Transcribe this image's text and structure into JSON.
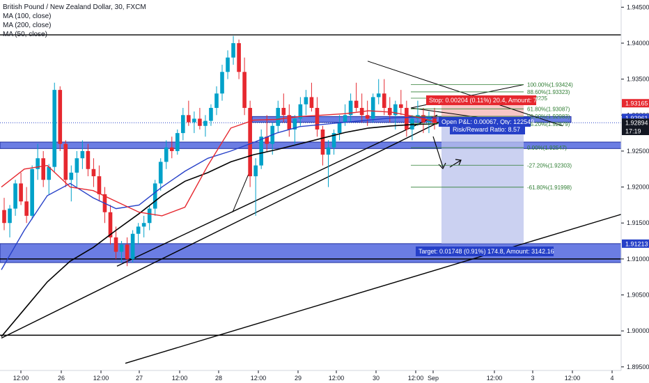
{
  "legend": {
    "title": "British Pound / New Zealand Dollar, 30, FXCM",
    "ma100": "MA (100, close)",
    "ma200": "MA (200, close)",
    "ma50": "MA (50, close)"
  },
  "colors": {
    "up": "#00a1c9",
    "down": "#e6282f",
    "ma50": "#e6282f",
    "ma100": "#2640c8",
    "ma200": "#000000",
    "zone": "#3a52d9",
    "target_box": "#b9c2ec",
    "stop_box": "#f5b8b8",
    "fib": "#2e7d32"
  },
  "chart_data": {
    "type": "candlestick",
    "symbol": "British Pound / New Zealand Dollar, 30, FXCM",
    "ylim": [
      1.8945,
      1.946
    ],
    "y_ticks": [
      "1.94500",
      "1.94000",
      "1.93500",
      "1.93000",
      "1.92500",
      "1.92000",
      "1.91500",
      "1.91000",
      "1.90500",
      "1.90000",
      "1.89500"
    ],
    "x_ticks": [
      "12:00",
      "26",
      "12:00",
      "27",
      "12:00",
      "28",
      "12:00",
      "29",
      "12:00",
      "30",
      "12:00",
      "Sep",
      "12:00",
      "3",
      "12:00",
      "4"
    ],
    "price_tags": [
      {
        "label": "1.93165",
        "color": "#e6282f"
      },
      {
        "label": "1.92961",
        "color": "#2640c8"
      },
      {
        "label": "1.92894",
        "color": "#131722"
      },
      {
        "label": "17:19",
        "color": "#131722"
      },
      {
        "label": "1.91213",
        "color": "#2640c8"
      }
    ],
    "fib_levels": [
      {
        "label": "100.00%(1.93424)",
        "value": 1.93424
      },
      {
        "label": "88.60%(1.93323)",
        "value": 1.93323
      },
      {
        "label": "1.93235",
        "value": 1.93235
      },
      {
        "label": "61.80%(1.93087)",
        "value": 1.93087
      },
      {
        "label": "50.00%(1.92983)",
        "value": 1.92983
      },
      {
        "label": "38.20%(1.92879)",
        "value": 1.92879
      },
      {
        "label": "0.00%(1.92547)",
        "value": 1.92547
      },
      {
        "label": "-27.20%(1.92303)",
        "value": 1.92303
      },
      {
        "label": "-61.80%(1.91998)",
        "value": 1.91998
      }
    ],
    "position": {
      "stop_label": "Stop: 0.00204 (0.11%) 20.4, Amount: 750",
      "pnl_label": "Open P&L: 0.00067, Qty: 122549",
      "rr_label": "Risk/Reward Ratio: 8.57",
      "target_label": "Target: 0.01748 (0.91%) 174.8, Amount: 3142.16",
      "entry": 1.92961,
      "stop": 1.93165,
      "target": 1.91213
    },
    "horizontal_levels": [
      1.94115,
      1.91,
      1.8994
    ],
    "zones": [
      [
        1.92625,
        1.92535
      ],
      [
        1.9298,
        1.929
      ],
      [
        1.91213,
        1.9095
      ]
    ],
    "candles": [
      [
        1.9168,
        1.9185,
        1.914,
        1.915
      ],
      [
        1.915,
        1.9175,
        1.913,
        1.917
      ],
      [
        1.917,
        1.921,
        1.916,
        1.9205
      ],
      [
        1.9205,
        1.922,
        1.9175,
        1.918
      ],
      [
        1.918,
        1.92,
        1.915,
        1.916
      ],
      [
        1.916,
        1.923,
        1.9155,
        1.9225
      ],
      [
        1.9225,
        1.926,
        1.921,
        1.924
      ],
      [
        1.924,
        1.925,
        1.92,
        1.921
      ],
      [
        1.921,
        1.9232,
        1.919,
        1.9228
      ],
      [
        1.9228,
        1.9345,
        1.922,
        1.9335
      ],
      [
        1.9335,
        1.934,
        1.925,
        1.926
      ],
      [
        1.926,
        1.9265,
        1.92,
        1.921
      ],
      [
        1.921,
        1.923,
        1.918,
        1.922
      ],
      [
        1.922,
        1.925,
        1.92,
        1.924
      ],
      [
        1.924,
        1.9265,
        1.9225,
        1.925
      ],
      [
        1.925,
        1.926,
        1.9215,
        1.9225
      ],
      [
        1.9225,
        1.924,
        1.92,
        1.9215
      ],
      [
        1.9215,
        1.923,
        1.918,
        1.919
      ],
      [
        1.919,
        1.92,
        1.915,
        1.9165
      ],
      [
        1.9165,
        1.9175,
        1.912,
        1.913
      ],
      [
        1.913,
        1.9145,
        1.91,
        1.911
      ],
      [
        1.911,
        1.9125,
        1.9095,
        1.912
      ],
      [
        1.912,
        1.913,
        1.909,
        1.91
      ],
      [
        1.91,
        1.914,
        1.9095,
        1.9135
      ],
      [
        1.9135,
        1.915,
        1.912,
        1.9145
      ],
      [
        1.9145,
        1.916,
        1.913,
        1.915
      ],
      [
        1.915,
        1.9175,
        1.914,
        1.917
      ],
      [
        1.917,
        1.921,
        1.916,
        1.9205
      ],
      [
        1.9205,
        1.924,
        1.9195,
        1.9235
      ],
      [
        1.9235,
        1.9265,
        1.9225,
        1.9255
      ],
      [
        1.9255,
        1.927,
        1.924,
        1.925
      ],
      [
        1.925,
        1.928,
        1.9245,
        1.9275
      ],
      [
        1.9275,
        1.931,
        1.9265,
        1.93
      ],
      [
        1.93,
        1.932,
        1.9285,
        1.929
      ],
      [
        1.929,
        1.9305,
        1.9275,
        1.9295
      ],
      [
        1.9295,
        1.931,
        1.928,
        1.9285
      ],
      [
        1.9285,
        1.93,
        1.927,
        1.9292
      ],
      [
        1.9292,
        1.9315,
        1.9285,
        1.931
      ],
      [
        1.931,
        1.934,
        1.93,
        1.933
      ],
      [
        1.933,
        1.937,
        1.932,
        1.936
      ],
      [
        1.936,
        1.939,
        1.935,
        1.938
      ],
      [
        1.938,
        1.941,
        1.937,
        1.94
      ],
      [
        1.94,
        1.9405,
        1.935,
        1.936
      ],
      [
        1.936,
        1.938,
        1.93,
        1.931
      ],
      [
        1.931,
        1.932,
        1.92,
        1.9215
      ],
      [
        1.9215,
        1.924,
        1.916,
        1.923
      ],
      [
        1.923,
        1.928,
        1.9225,
        1.927
      ],
      [
        1.927,
        1.93,
        1.925,
        1.926
      ],
      [
        1.926,
        1.929,
        1.9245,
        1.9285
      ],
      [
        1.9285,
        1.932,
        1.9275,
        1.931
      ],
      [
        1.931,
        1.933,
        1.929,
        1.93
      ],
      [
        1.93,
        1.9315,
        1.927,
        1.928
      ],
      [
        1.928,
        1.93,
        1.926,
        1.9295
      ],
      [
        1.9295,
        1.9325,
        1.9285,
        1.9315
      ],
      [
        1.9315,
        1.9335,
        1.93,
        1.9325
      ],
      [
        1.9325,
        1.9345,
        1.9305,
        1.931
      ],
      [
        1.931,
        1.9325,
        1.927,
        1.928
      ],
      [
        1.928,
        1.9285,
        1.923,
        1.9245
      ],
      [
        1.9245,
        1.9265,
        1.92,
        1.9255
      ],
      [
        1.9255,
        1.928,
        1.9245,
        1.9275
      ],
      [
        1.9275,
        1.93,
        1.9265,
        1.929
      ],
      [
        1.929,
        1.9315,
        1.9285,
        1.93
      ],
      [
        1.93,
        1.933,
        1.929,
        1.932
      ],
      [
        1.932,
        1.9345,
        1.9305,
        1.931
      ],
      [
        1.931,
        1.933,
        1.929,
        1.93
      ],
      [
        1.93,
        1.932,
        1.9285,
        1.9295
      ],
      [
        1.9295,
        1.933,
        1.929,
        1.9325
      ],
      [
        1.9325,
        1.935,
        1.9315,
        1.933
      ],
      [
        1.933,
        1.935,
        1.93,
        1.931
      ],
      [
        1.931,
        1.9325,
        1.929,
        1.93
      ],
      [
        1.93,
        1.932,
        1.928,
        1.9315
      ],
      [
        1.9315,
        1.9335,
        1.93,
        1.931
      ],
      [
        1.931,
        1.932,
        1.927,
        1.928
      ],
      [
        1.928,
        1.93,
        1.9265,
        1.9295
      ],
      [
        1.9295,
        1.932,
        1.9285,
        1.93
      ],
      [
        1.93,
        1.931,
        1.9275,
        1.929
      ],
      [
        1.929,
        1.9305,
        1.9275,
        1.9298
      ],
      [
        1.9298,
        1.931,
        1.928,
        1.9289
      ]
    ],
    "ma50_points": [
      1.92,
      1.9225,
      1.923,
      1.92,
      1.9195,
      1.918,
      1.9165,
      1.916,
      1.9172,
      1.923,
      1.9282,
      1.9293,
      1.9294,
      1.9298,
      1.93,
      1.9302,
      1.9306,
      1.9304,
      1.9298,
      1.929
    ],
    "ma100_points": [
      1.9085,
      1.914,
      1.9188,
      1.9205,
      1.9185,
      1.917,
      1.9175,
      1.92,
      1.9222,
      1.924,
      1.925,
      1.9262,
      1.9275,
      1.9284,
      1.9287,
      1.929,
      1.9293,
      1.9296,
      1.9297,
      1.9296
    ],
    "ma200_points": [
      1.8992,
      1.903,
      1.9068,
      1.9097,
      1.9116,
      1.914,
      1.9163,
      1.9188,
      1.9208,
      1.922,
      1.9235,
      1.9245,
      1.9252,
      1.926,
      1.9268,
      1.9276,
      1.9282,
      1.9285,
      1.9287,
      1.9288
    ]
  }
}
